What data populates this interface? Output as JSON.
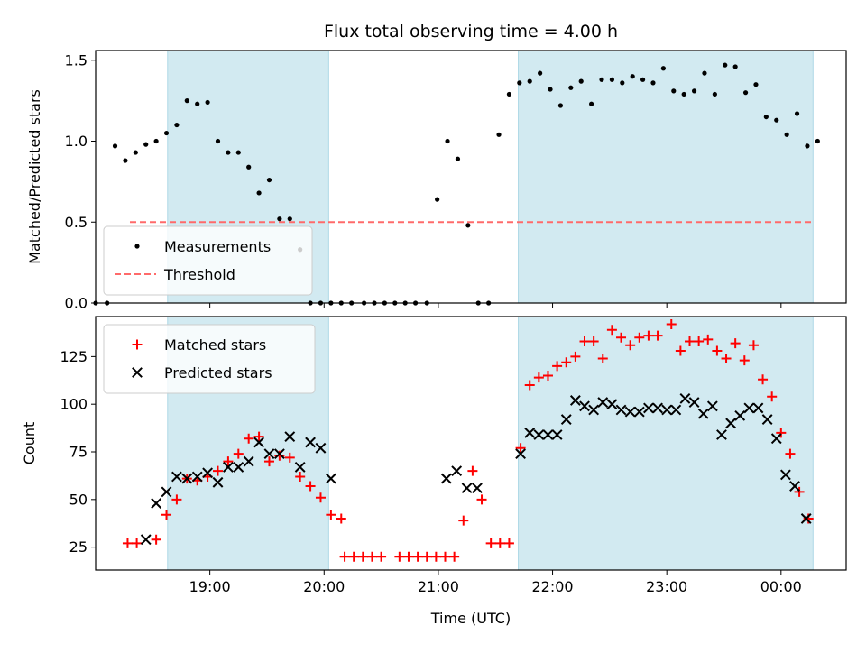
{
  "chart_data": {
    "title": "Flux total observing time = 4.00 h",
    "xlabel": "Time (UTC)",
    "x_unit": "hour",
    "xlim": [
      18.0,
      24.57
    ],
    "x_ticks": [
      {
        "value": 19,
        "label": "19:00"
      },
      {
        "value": 20,
        "label": "20:00"
      },
      {
        "value": 21,
        "label": "21:00"
      },
      {
        "value": 22,
        "label": "22:00"
      },
      {
        "value": 23,
        "label": "23:00"
      },
      {
        "value": 24,
        "label": "00:00"
      }
    ],
    "shaded_regions": [
      [
        18.63,
        20.04
      ],
      [
        21.7,
        24.28
      ]
    ],
    "shade_color": "#add8e6",
    "panels": [
      {
        "type": "scatter",
        "ylabel": "Matched/Predicted stars",
        "ylim": [
          0.0,
          1.56
        ],
        "y_ticks": [
          {
            "value": 0.0,
            "label": "0.0"
          },
          {
            "value": 0.5,
            "label": "0.5"
          },
          {
            "value": 1.0,
            "label": "1.0"
          },
          {
            "value": 1.5,
            "label": "1.5"
          }
        ],
        "legend": {
          "placement": "lower-left"
        },
        "threshold": {
          "name": "Threshold",
          "value": 0.5,
          "x_range": [
            18.3,
            24.3
          ],
          "color": "#ff6a6a"
        },
        "series": [
          {
            "name": "Measurements",
            "marker": "dot",
            "color": "#000000",
            "points": [
              [
                18.0,
                0.0
              ],
              [
                18.1,
                0.0
              ],
              [
                18.17,
                0.97
              ],
              [
                18.26,
                0.88
              ],
              [
                18.35,
                0.93
              ],
              [
                18.44,
                0.98
              ],
              [
                18.53,
                1.0
              ],
              [
                18.62,
                1.05
              ],
              [
                18.71,
                1.1
              ],
              [
                18.8,
                1.25
              ],
              [
                18.89,
                1.23
              ],
              [
                18.98,
                1.24
              ],
              [
                19.07,
                1.0
              ],
              [
                19.16,
                0.93
              ],
              [
                19.25,
                0.93
              ],
              [
                19.34,
                0.84
              ],
              [
                19.43,
                0.68
              ],
              [
                19.52,
                0.76
              ],
              [
                19.61,
                0.52
              ],
              [
                19.7,
                0.52
              ],
              [
                19.79,
                0.33
              ],
              [
                19.88,
                0.0
              ],
              [
                19.97,
                0.0
              ],
              [
                20.06,
                0.0
              ],
              [
                20.15,
                0.0
              ],
              [
                20.24,
                0.0
              ],
              [
                20.35,
                0.0
              ],
              [
                20.44,
                0.0
              ],
              [
                20.53,
                0.0
              ],
              [
                20.62,
                0.0
              ],
              [
                20.71,
                0.0
              ],
              [
                20.8,
                0.0
              ],
              [
                20.9,
                0.0
              ],
              [
                20.99,
                0.64
              ],
              [
                21.08,
                1.0
              ],
              [
                21.17,
                0.89
              ],
              [
                21.26,
                0.48
              ],
              [
                21.35,
                0.0
              ],
              [
                21.44,
                0.0
              ],
              [
                21.53,
                1.04
              ],
              [
                21.62,
                1.29
              ],
              [
                21.71,
                1.36
              ],
              [
                21.8,
                1.37
              ],
              [
                21.89,
                1.42
              ],
              [
                21.98,
                1.32
              ],
              [
                22.07,
                1.22
              ],
              [
                22.16,
                1.33
              ],
              [
                22.25,
                1.37
              ],
              [
                22.34,
                1.23
              ],
              [
                22.43,
                1.38
              ],
              [
                22.52,
                1.38
              ],
              [
                22.61,
                1.36
              ],
              [
                22.7,
                1.4
              ],
              [
                22.79,
                1.38
              ],
              [
                22.88,
                1.36
              ],
              [
                22.97,
                1.45
              ],
              [
                23.06,
                1.31
              ],
              [
                23.15,
                1.29
              ],
              [
                23.24,
                1.31
              ],
              [
                23.33,
                1.42
              ],
              [
                23.42,
                1.29
              ],
              [
                23.51,
                1.47
              ],
              [
                23.6,
                1.46
              ],
              [
                23.69,
                1.3
              ],
              [
                23.78,
                1.35
              ],
              [
                23.87,
                1.15
              ],
              [
                23.96,
                1.13
              ],
              [
                24.05,
                1.04
              ],
              [
                24.14,
                1.17
              ],
              [
                24.23,
                0.97
              ],
              [
                24.32,
                1.0
              ]
            ]
          }
        ]
      },
      {
        "type": "scatter",
        "ylabel": "Count",
        "ylim": [
          13,
          146
        ],
        "y_ticks": [
          {
            "value": 25,
            "label": "25"
          },
          {
            "value": 50,
            "label": "50"
          },
          {
            "value": 75,
            "label": "75"
          },
          {
            "value": 100,
            "label": "100"
          },
          {
            "value": 125,
            "label": "125"
          }
        ],
        "legend": {
          "placement": "upper-left"
        },
        "series": [
          {
            "name": "Matched stars",
            "marker": "plus",
            "color": "#ff0000",
            "points": [
              [
                18.28,
                27
              ],
              [
                18.36,
                27
              ],
              [
                18.53,
                29
              ],
              [
                18.62,
                42
              ],
              [
                18.71,
                50
              ],
              [
                18.8,
                61
              ],
              [
                18.89,
                60
              ],
              [
                18.98,
                62
              ],
              [
                19.07,
                65
              ],
              [
                19.16,
                70
              ],
              [
                19.25,
                74
              ],
              [
                19.34,
                82
              ],
              [
                19.43,
                83
              ],
              [
                19.52,
                70
              ],
              [
                19.61,
                73
              ],
              [
                19.7,
                72
              ],
              [
                19.79,
                62
              ],
              [
                19.88,
                57
              ],
              [
                19.97,
                51
              ],
              [
                20.06,
                42
              ],
              [
                20.15,
                40
              ],
              [
                20.18,
                20
              ],
              [
                20.26,
                20
              ],
              [
                20.34,
                20
              ],
              [
                20.42,
                20
              ],
              [
                20.5,
                20
              ],
              [
                20.66,
                20
              ],
              [
                20.74,
                20
              ],
              [
                20.82,
                20
              ],
              [
                20.9,
                20
              ],
              [
                20.98,
                20
              ],
              [
                21.06,
                20
              ],
              [
                21.14,
                20
              ],
              [
                21.22,
                39
              ],
              [
                21.3,
                65
              ],
              [
                21.38,
                50
              ],
              [
                21.46,
                27
              ],
              [
                21.54,
                27
              ],
              [
                21.62,
                27
              ],
              [
                21.72,
                77
              ],
              [
                21.8,
                110
              ],
              [
                21.88,
                114
              ],
              [
                21.96,
                115
              ],
              [
                22.04,
                120
              ],
              [
                22.12,
                122
              ],
              [
                22.2,
                125
              ],
              [
                22.28,
                133
              ],
              [
                22.36,
                133
              ],
              [
                22.44,
                124
              ],
              [
                22.52,
                139
              ],
              [
                22.6,
                135
              ],
              [
                22.68,
                131
              ],
              [
                22.76,
                135
              ],
              [
                22.84,
                136
              ],
              [
                22.92,
                136
              ],
              [
                23.04,
                142
              ],
              [
                23.12,
                128
              ],
              [
                23.2,
                133
              ],
              [
                23.28,
                133
              ],
              [
                23.36,
                134
              ],
              [
                23.44,
                128
              ],
              [
                23.52,
                124
              ],
              [
                23.6,
                132
              ],
              [
                23.68,
                123
              ],
              [
                23.76,
                131
              ],
              [
                23.84,
                113
              ],
              [
                23.92,
                104
              ],
              [
                24.0,
                85
              ],
              [
                24.08,
                74
              ],
              [
                24.16,
                54
              ],
              [
                24.24,
                40
              ]
            ]
          },
          {
            "name": "Predicted stars",
            "marker": "x",
            "color": "#000000",
            "points": [
              [
                18.44,
                29
              ],
              [
                18.53,
                48
              ],
              [
                18.62,
                54
              ],
              [
                18.71,
                62
              ],
              [
                18.8,
                61
              ],
              [
                18.89,
                62
              ],
              [
                18.98,
                64
              ],
              [
                19.07,
                59
              ],
              [
                19.16,
                67
              ],
              [
                19.25,
                67
              ],
              [
                19.34,
                70
              ],
              [
                19.43,
                80
              ],
              [
                19.52,
                74
              ],
              [
                19.61,
                74
              ],
              [
                19.7,
                83
              ],
              [
                19.79,
                67
              ],
              [
                19.88,
                80
              ],
              [
                19.97,
                77
              ],
              [
                20.06,
                61
              ],
              [
                21.07,
                61
              ],
              [
                21.16,
                65
              ],
              [
                21.25,
                56
              ],
              [
                21.34,
                56
              ],
              [
                21.72,
                74
              ],
              [
                21.8,
                85
              ],
              [
                21.88,
                84
              ],
              [
                21.96,
                84
              ],
              [
                22.04,
                84
              ],
              [
                22.12,
                92
              ],
              [
                22.2,
                102
              ],
              [
                22.28,
                99
              ],
              [
                22.36,
                97
              ],
              [
                22.44,
                101
              ],
              [
                22.52,
                100
              ],
              [
                22.6,
                97
              ],
              [
                22.68,
                96
              ],
              [
                22.76,
                96
              ],
              [
                22.84,
                98
              ],
              [
                22.92,
                98
              ],
              [
                23.0,
                97
              ],
              [
                23.08,
                97
              ],
              [
                23.16,
                103
              ],
              [
                23.24,
                101
              ],
              [
                23.32,
                95
              ],
              [
                23.4,
                99
              ],
              [
                23.48,
                84
              ],
              [
                23.56,
                90
              ],
              [
                23.64,
                94
              ],
              [
                23.72,
                98
              ],
              [
                23.8,
                98
              ],
              [
                23.88,
                92
              ],
              [
                23.96,
                82
              ],
              [
                24.04,
                63
              ],
              [
                24.12,
                57
              ],
              [
                24.22,
                40
              ]
            ]
          }
        ]
      }
    ]
  }
}
